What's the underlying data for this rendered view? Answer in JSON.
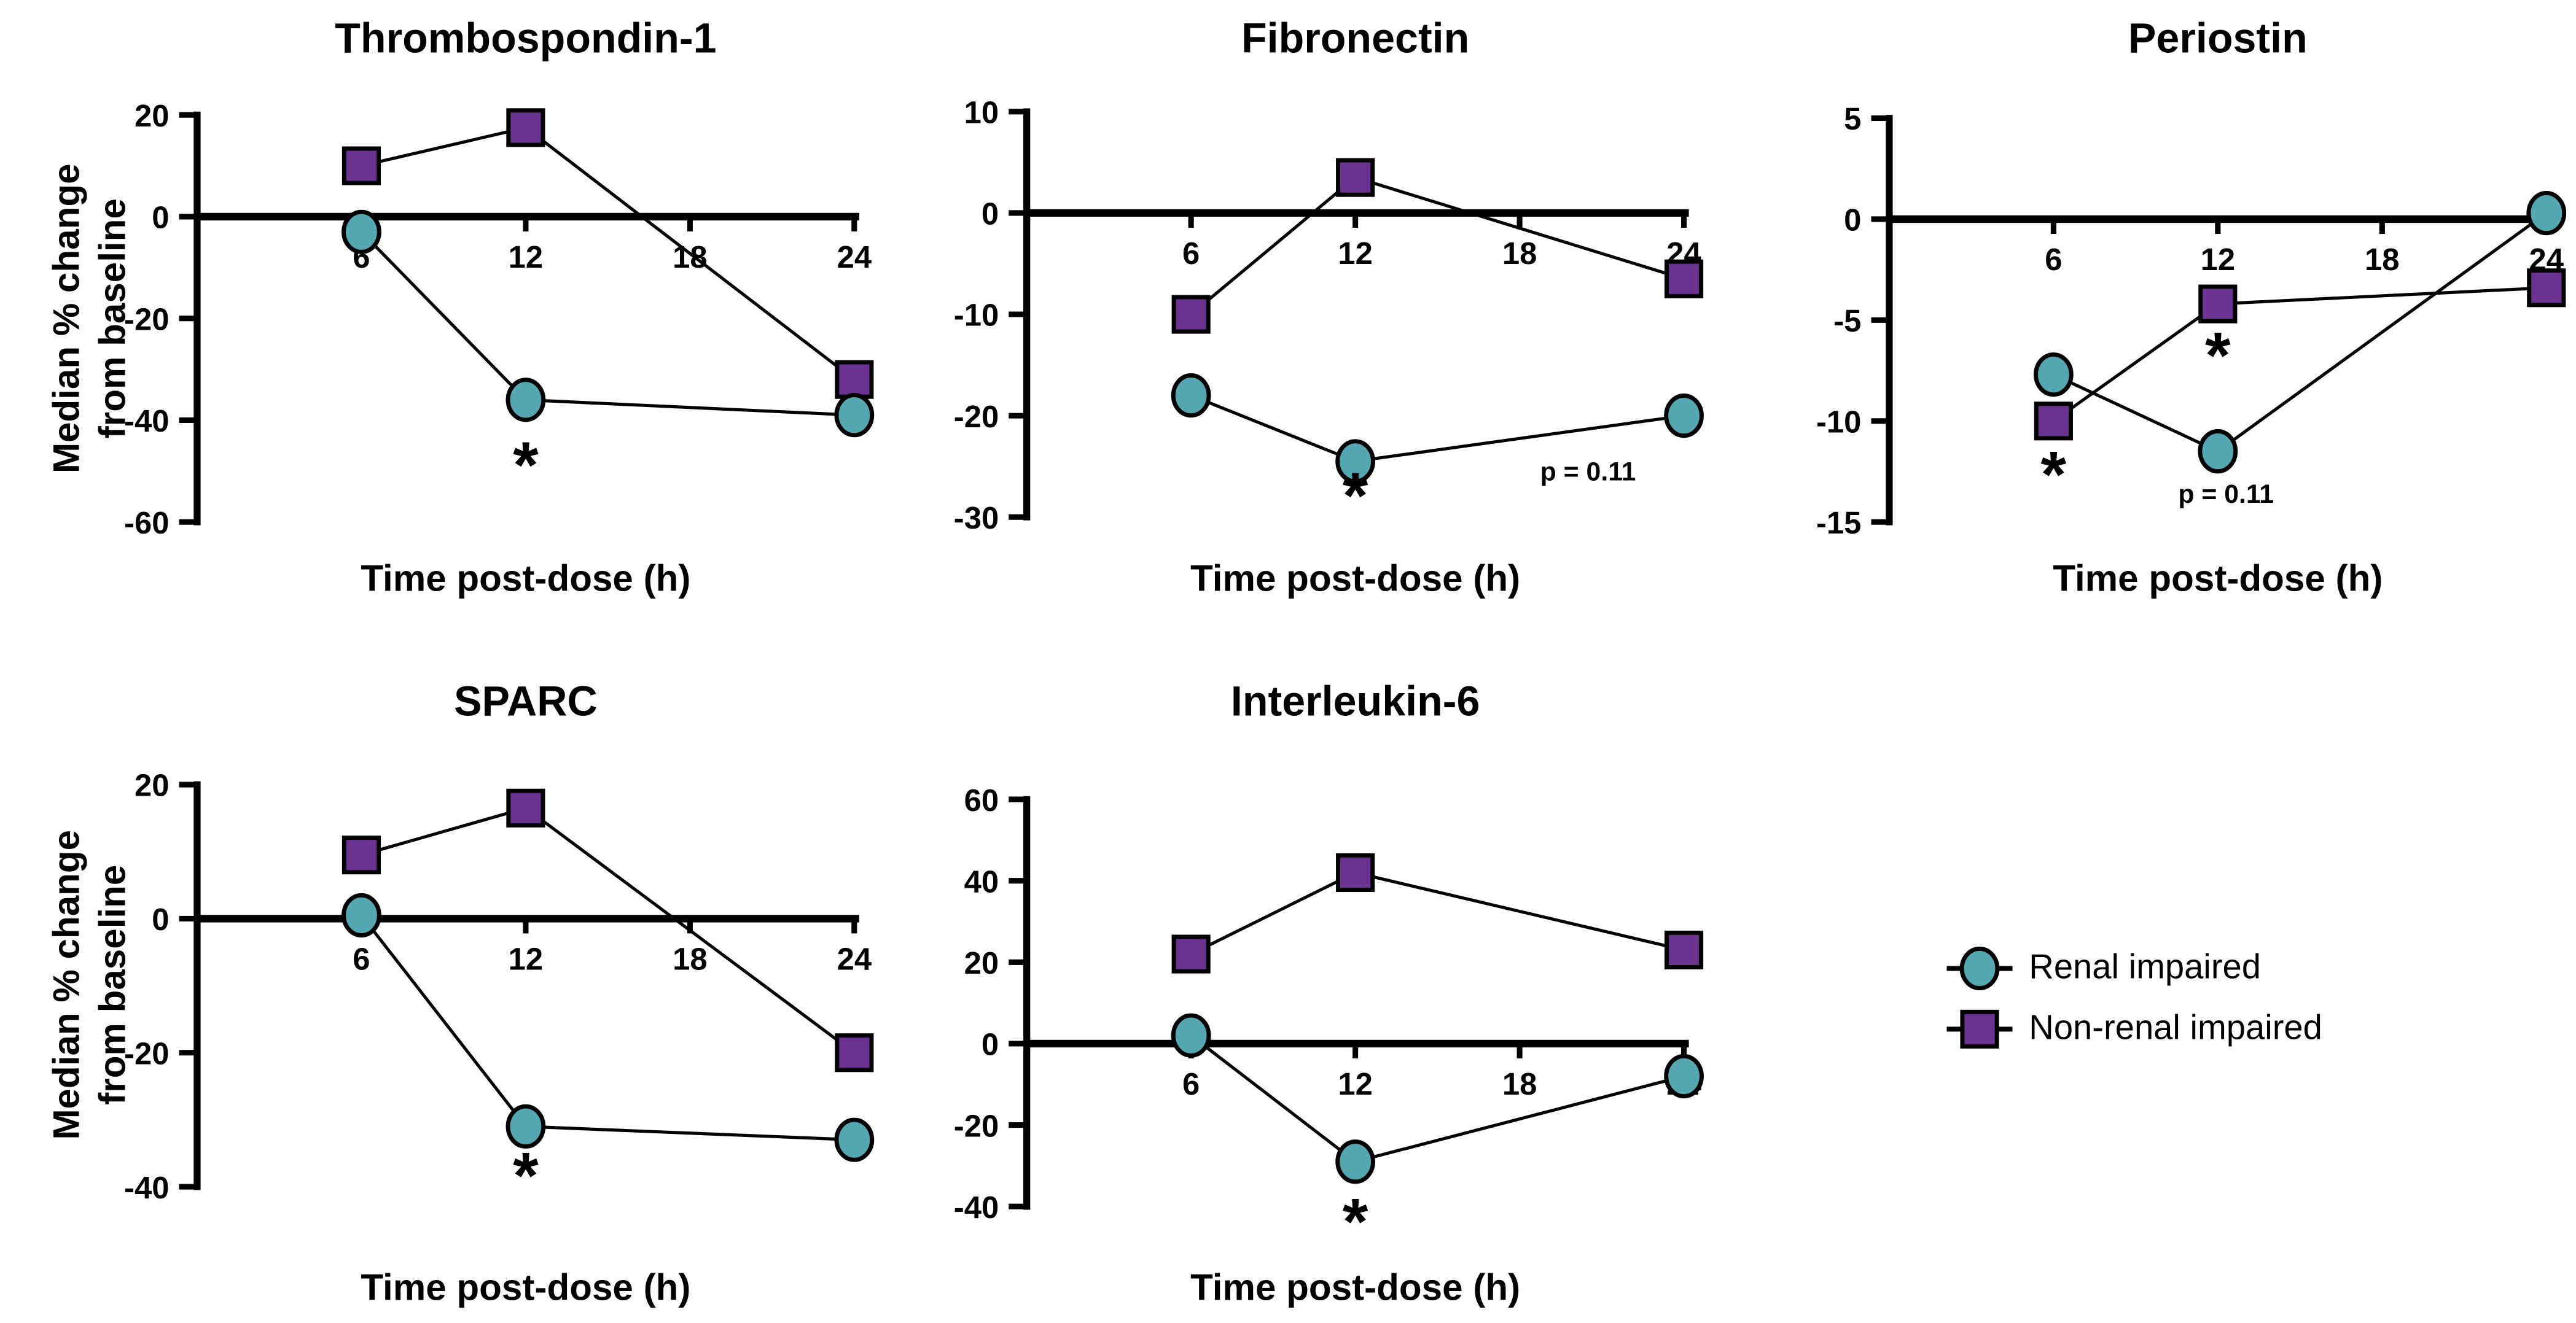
{
  "figure": {
    "background": "#FFFFFF",
    "ylabel_line1": "Median % change",
    "ylabel_line2": "from baseline",
    "xlabel": "Time post-dose (h)",
    "legend_position": "middle-right"
  },
  "colors": {
    "renal_impaired": "#55A8B2",
    "non_renal_impaired": "#6B3290",
    "line": "#000000",
    "text": "#000000"
  },
  "legend": {
    "items": [
      {
        "label": "Renal impaired",
        "marker": "circle",
        "color": "#55A8B2"
      },
      {
        "label": "Non-renal impaired",
        "marker": "square",
        "color": "#6B3290"
      }
    ]
  },
  "chart_data": [
    {
      "type": "line",
      "title": "Thrombospondin-1",
      "xlabel": "Time post-dose (h)",
      "ylabel": "Median % change from baseline",
      "x": [
        6,
        12,
        24
      ],
      "x_ticks": [
        6,
        12,
        18,
        24
      ],
      "xlim": [
        0,
        24
      ],
      "y_ticks": [
        20,
        0,
        -20,
        -40,
        -60
      ],
      "ylim": [
        -60,
        20
      ],
      "grid": false,
      "series": [
        {
          "name": "Renal impaired",
          "marker": "circle",
          "color": "#55A8B2",
          "values": [
            -3,
            -36,
            -39
          ]
        },
        {
          "name": "Non-renal impaired",
          "marker": "square",
          "color": "#6B3290",
          "values": [
            10,
            17.5,
            -32
          ]
        }
      ],
      "annotations": [
        {
          "text": "*",
          "x": 12,
          "y": -49,
          "style": "asterisk"
        }
      ]
    },
    {
      "type": "line",
      "title": "Fibronectin",
      "xlabel": "Time post-dose (h)",
      "x": [
        6,
        12,
        24
      ],
      "x_ticks": [
        6,
        12,
        18,
        24
      ],
      "xlim": [
        0,
        24
      ],
      "y_ticks": [
        10,
        0,
        -10,
        -20,
        -30
      ],
      "ylim": [
        -30,
        10
      ],
      "grid": false,
      "series": [
        {
          "name": "Renal impaired",
          "marker": "circle",
          "color": "#55A8B2",
          "values": [
            -18,
            -24.5,
            -20
          ]
        },
        {
          "name": "Non-renal impaired",
          "marker": "square",
          "color": "#6B3290",
          "values": [
            -10,
            3.5,
            -6.5
          ]
        }
      ],
      "annotations": [
        {
          "text": "*",
          "x": 12,
          "y": -28,
          "style": "asterisk"
        },
        {
          "text": "p = 0.11",
          "x": 20.5,
          "y": -25.5,
          "style": "pvalue"
        }
      ]
    },
    {
      "type": "line",
      "title": "Periostin",
      "xlabel": "Time post-dose (h)",
      "x": [
        6,
        12,
        24
      ],
      "x_ticks": [
        6,
        12,
        18,
        24
      ],
      "xlim": [
        0,
        24
      ],
      "y_ticks": [
        5,
        0,
        -5,
        -10,
        -15
      ],
      "ylim": [
        -15,
        5
      ],
      "grid": false,
      "series": [
        {
          "name": "Renal impaired",
          "marker": "circle",
          "color": "#55A8B2",
          "values": [
            -7.7,
            -11.5,
            0.3
          ]
        },
        {
          "name": "Non-renal impaired",
          "marker": "square",
          "color": "#6B3290",
          "values": [
            -10,
            -4.2,
            -3.4
          ]
        }
      ],
      "annotations": [
        {
          "text": "*",
          "x": 6,
          "y": -12.7,
          "style": "asterisk"
        },
        {
          "text": "*",
          "x": 12,
          "y": -6.8,
          "style": "asterisk"
        },
        {
          "text": "p = 0.11",
          "x": 12.3,
          "y": -13.6,
          "style": "pvalue"
        }
      ]
    },
    {
      "type": "line",
      "title": "SPARC",
      "xlabel": "Time post-dose (h)",
      "ylabel": "Median % change from baseline",
      "x": [
        6,
        12,
        24
      ],
      "x_ticks": [
        6,
        12,
        18,
        24
      ],
      "xlim": [
        0,
        24
      ],
      "y_ticks": [
        20,
        0,
        -20,
        -40
      ],
      "ylim": [
        -40,
        20
      ],
      "grid": false,
      "series": [
        {
          "name": "Renal impaired",
          "marker": "circle",
          "color": "#55A8B2",
          "values": [
            0.5,
            -31,
            -33
          ]
        },
        {
          "name": "Non-renal impaired",
          "marker": "square",
          "color": "#6B3290",
          "values": [
            9.5,
            16.5,
            -20
          ]
        }
      ],
      "annotations": [
        {
          "text": "*",
          "x": 12,
          "y": -38.5,
          "style": "asterisk"
        }
      ]
    },
    {
      "type": "line",
      "title": "Interleukin-6",
      "xlabel": "Time post-dose (h)",
      "x": [
        6,
        12,
        24
      ],
      "x_ticks": [
        6,
        12,
        18,
        24
      ],
      "xlim": [
        0,
        24
      ],
      "y_ticks": [
        60,
        40,
        20,
        0,
        -20,
        -40
      ],
      "ylim": [
        -40,
        60
      ],
      "grid": false,
      "series": [
        {
          "name": "Renal impaired",
          "marker": "circle",
          "color": "#55A8B2",
          "values": [
            2,
            -29,
            -8
          ]
        },
        {
          "name": "Non-renal impaired",
          "marker": "square",
          "color": "#6B3290",
          "values": [
            22,
            42,
            23
          ]
        }
      ],
      "annotations": [
        {
          "text": "*",
          "x": 12,
          "y": -44,
          "style": "asterisk"
        }
      ]
    }
  ]
}
